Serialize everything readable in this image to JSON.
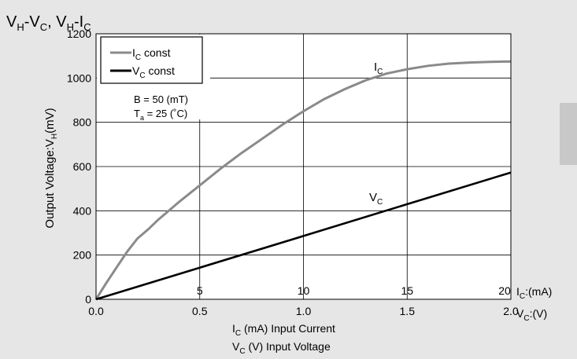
{
  "chart_data": {
    "type": "line",
    "title": {
      "p1": "V",
      "s1": "H",
      "p2": "-V",
      "s2": "C",
      "p3": ", V",
      "s3": "H",
      "p4": "-I",
      "s4": "C"
    },
    "ylabel": {
      "pre": "Output Voltage:V",
      "sub": "H",
      "post": "(mV)"
    },
    "xlim": [
      0,
      2
    ],
    "ylim": [
      0,
      1200
    ],
    "x_ticks": [
      "0.0",
      "0.5",
      "1.0",
      "1.5",
      "2.0"
    ],
    "x_tick_values": [
      0,
      0.5,
      1.0,
      1.5,
      2.0
    ],
    "inner_ticks": [
      "5",
      "10",
      "15",
      "20"
    ],
    "inner_tick_values": [
      0.5,
      1.0,
      1.5,
      2.0
    ],
    "y_ticks": [
      "0",
      "200",
      "400",
      "600",
      "800",
      "1000",
      "1200"
    ],
    "y_tick_values": [
      0,
      200,
      400,
      600,
      800,
      1000,
      1200
    ],
    "ic_unit": {
      "pre": "I",
      "sub": "C",
      "post": ":(mA)"
    },
    "vc_unit": {
      "pre": "V",
      "sub": "C",
      "post": ":(V)"
    },
    "xlabel_ic": {
      "pre": "I",
      "sub": "C",
      "post": " (mA)  Input Current"
    },
    "xlabel_vc": {
      "pre": "V",
      "sub": "C",
      "post": " (V)  Input Voltage"
    },
    "conditions": {
      "b": "B  =  50 (mT)",
      "ta_pre": "T",
      "ta_sub": "a",
      "ta_post": " = 25 (˚C)"
    },
    "grid": true,
    "legend_position": "top-left",
    "series": [
      {
        "name": {
          "pre": "I",
          "sub": "C",
          "post": " const"
        },
        "curve_label": {
          "pre": "I",
          "sub": "C"
        },
        "color": "#8a8a8a",
        "x": [
          0,
          0.05,
          0.1,
          0.15,
          0.2,
          0.25,
          0.3,
          0.4,
          0.5,
          0.6,
          0.7,
          0.8,
          0.9,
          1.0,
          1.1,
          1.2,
          1.3,
          1.4,
          1.5,
          1.6,
          1.7,
          1.8,
          1.9,
          2.0
        ],
        "y": [
          0,
          75,
          145,
          215,
          275,
          315,
          360,
          440,
          515,
          590,
          660,
          725,
          790,
          850,
          905,
          950,
          990,
          1020,
          1040,
          1055,
          1065,
          1070,
          1073,
          1075
        ]
      },
      {
        "name": {
          "pre": "V",
          "sub": "C",
          "post": " const"
        },
        "curve_label": {
          "pre": "V",
          "sub": "C"
        },
        "color": "#000000",
        "x": [
          0,
          0.5,
          1.0,
          1.5,
          2.0
        ],
        "y": [
          0,
          143,
          286,
          430,
          573
        ]
      }
    ]
  }
}
